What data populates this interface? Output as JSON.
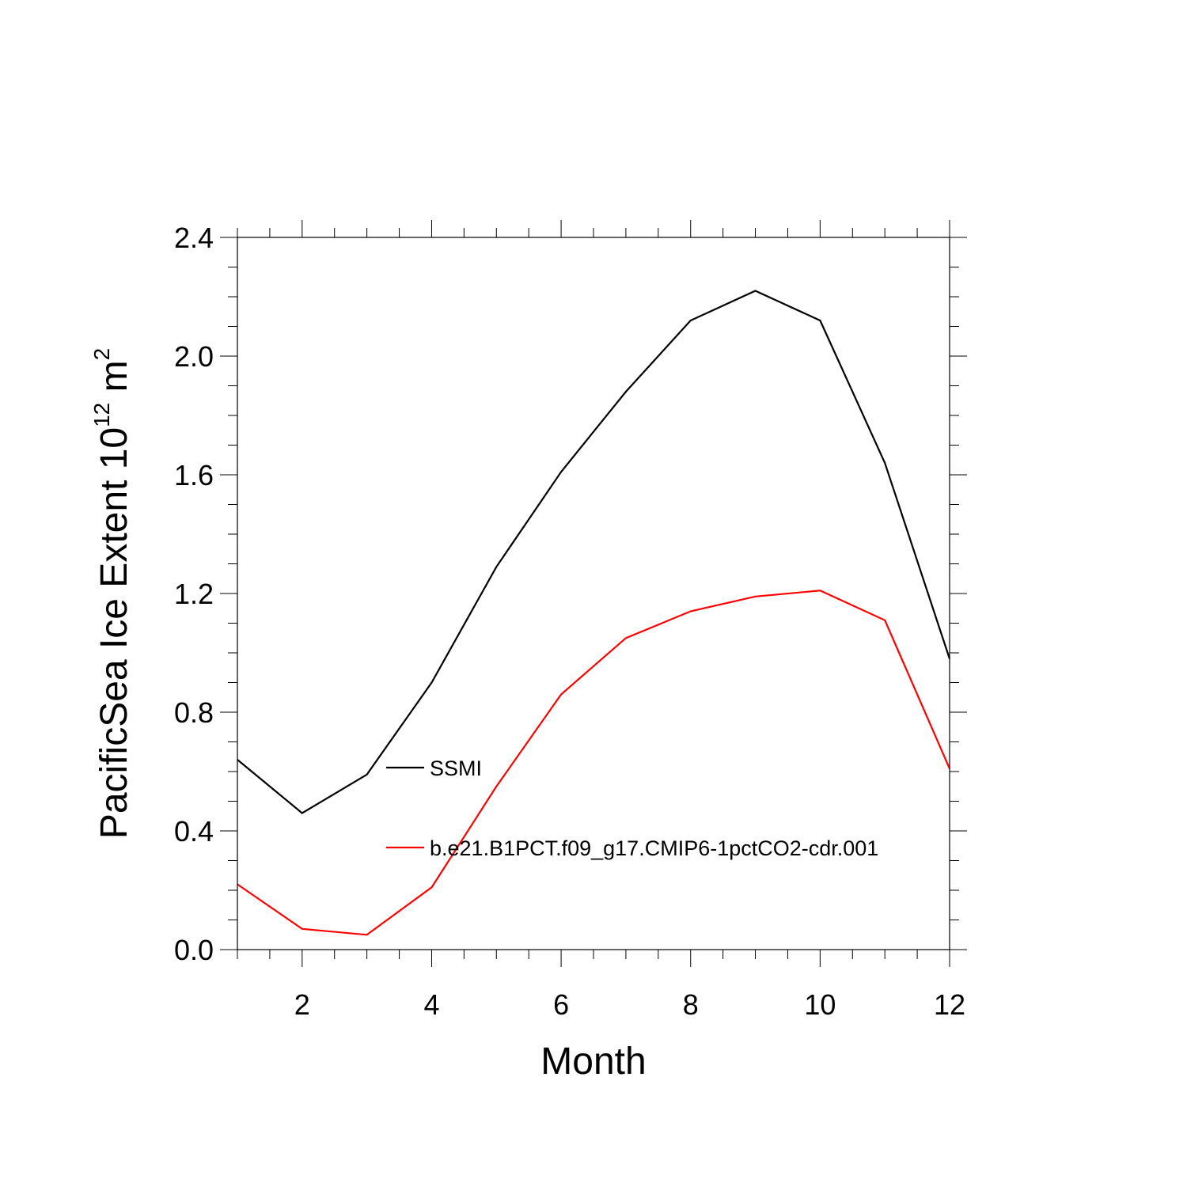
{
  "chart_data": {
    "type": "line",
    "xlabel": "Month",
    "ylabel_main": "PacificSea Ice Extent 10",
    "ylabel_sup1": "12",
    "ylabel_mid": " m",
    "ylabel_sup2": "2",
    "xlim": [
      1,
      12
    ],
    "ylim": [
      0.0,
      2.4
    ],
    "x_ticks": [
      2,
      4,
      6,
      8,
      10,
      12
    ],
    "y_ticks": [
      0.0,
      0.4,
      0.8,
      1.2,
      1.6,
      2.0,
      2.4
    ],
    "y_tick_labels": [
      "0.0",
      "0.4",
      "0.8",
      "1.2",
      "1.6",
      "2.0",
      "2.4"
    ],
    "x_tick_labels": [
      "2",
      "4",
      "6",
      "8",
      "10",
      "12"
    ],
    "grid": false,
    "legend_position": "center",
    "x": [
      1,
      2,
      3,
      4,
      5,
      6,
      7,
      8,
      9,
      10,
      11,
      12
    ],
    "series": [
      {
        "name": "SSMI",
        "color": "#000000",
        "values": [
          0.64,
          0.46,
          0.59,
          0.9,
          1.29,
          1.61,
          1.88,
          2.12,
          2.22,
          2.12,
          1.64,
          0.98
        ]
      },
      {
        "name": "b.e21.B1PCT.f09_g17.CMIP6-1pctCO2-cdr.001",
        "color": "#ff0000",
        "values": [
          0.22,
          0.07,
          0.05,
          0.21,
          0.55,
          0.86,
          1.05,
          1.14,
          1.19,
          1.21,
          1.11,
          0.61
        ]
      }
    ]
  }
}
